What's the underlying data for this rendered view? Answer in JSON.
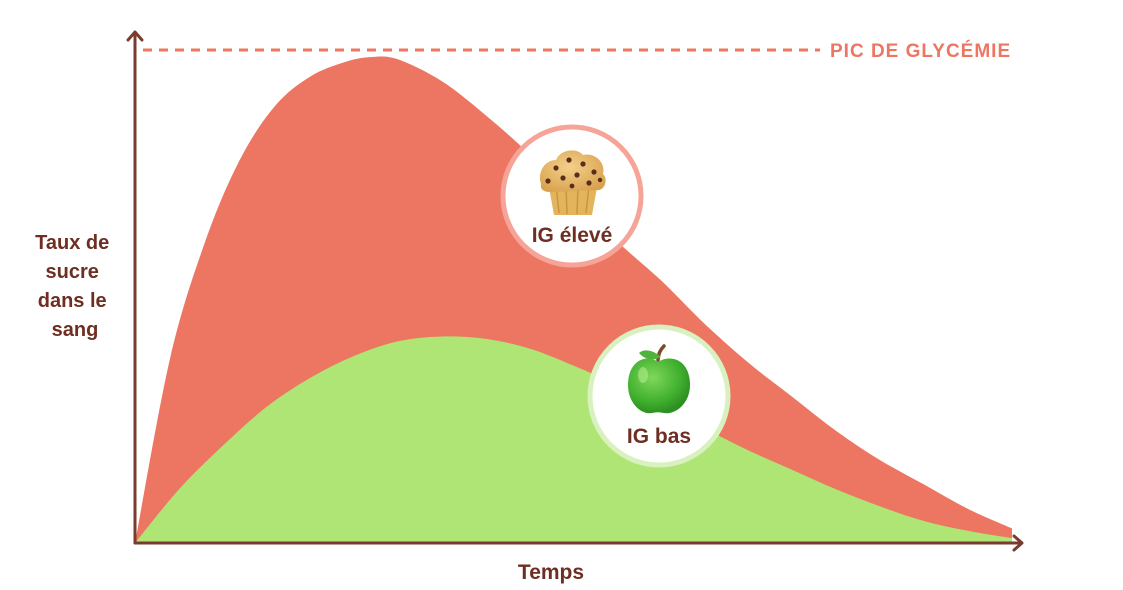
{
  "chart_data": {
    "type": "area",
    "title": "",
    "xlabel": "Temps",
    "ylabel": "Taux de sucre dans le sang",
    "ylabel_lines": [
      "Taux de",
      "sucre",
      "dans le",
      "sang"
    ],
    "xlim": [
      0,
      100
    ],
    "ylim": [
      0,
      100
    ],
    "grid": false,
    "reference_line": {
      "label": "PIC DE GLYCÉMIE",
      "y": 100
    },
    "series": [
      {
        "name": "IG élevé",
        "icon": "muffin-icon",
        "color": "#EC7662",
        "ring_color": "#F5A497",
        "x": [
          0,
          4,
          8,
          12,
          16,
          20,
          24,
          27,
          30,
          35,
          40,
          45,
          50,
          55,
          60,
          65,
          70,
          75,
          80,
          85,
          90,
          95,
          100
        ],
        "y": [
          0,
          38,
          62,
          79,
          90,
          96,
          99,
          100,
          99.5,
          95,
          88,
          80,
          71,
          62,
          54,
          45,
          37,
          30,
          23,
          17,
          12,
          7,
          3
        ]
      },
      {
        "name": "IG bas",
        "icon": "apple-icon",
        "color": "#AEE574",
        "ring_color": "#D9F0BF",
        "x": [
          0,
          5,
          10,
          15,
          20,
          25,
          30,
          35,
          40,
          45,
          50,
          55,
          60,
          65,
          70,
          75,
          80,
          85,
          90,
          95,
          100
        ],
        "y": [
          0,
          11,
          20,
          28,
          34,
          38.5,
          41.5,
          42.5,
          42,
          40,
          36.5,
          32.5,
          28,
          23.5,
          19,
          15,
          11,
          7.5,
          4.5,
          2.5,
          1
        ]
      }
    ]
  },
  "colors": {
    "axis": "#7A3B2E",
    "label_text": "#6E2E22",
    "reference": "#EC7662"
  }
}
